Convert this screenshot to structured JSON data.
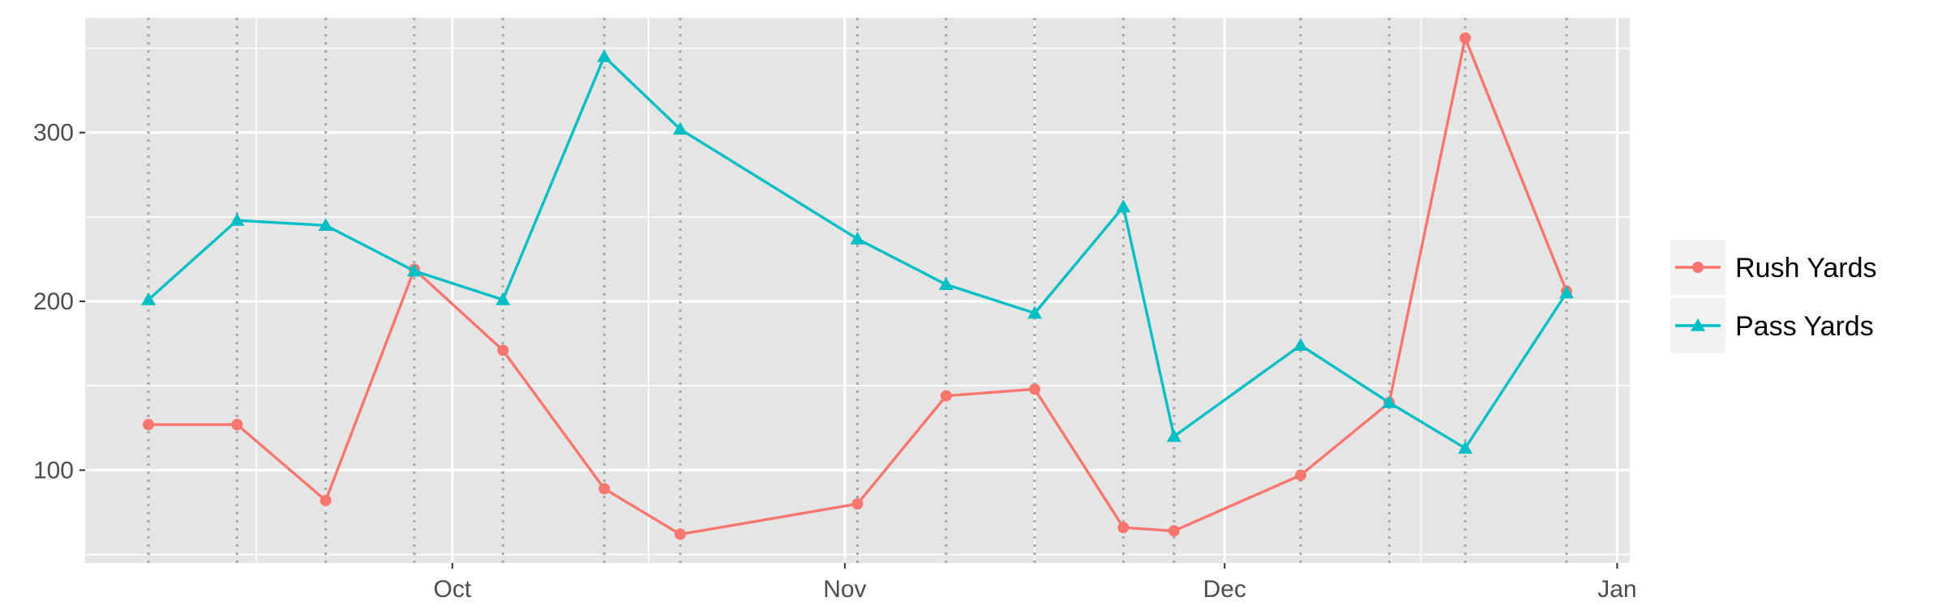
{
  "chart_data": {
    "type": "line",
    "title": "",
    "xlabel": "",
    "ylabel": "",
    "x_axis_type": "date",
    "xlim": [
      "2024-09-02",
      "2025-01-02"
    ],
    "ylim": [
      45,
      368
    ],
    "x_ticks": [
      {
        "date": "2024-10-01",
        "label": "Oct"
      },
      {
        "date": "2024-11-01",
        "label": "Nov"
      },
      {
        "date": "2024-12-01",
        "label": "Dec"
      },
      {
        "date": "2025-01-01",
        "label": "Jan"
      }
    ],
    "y_ticks": [
      100,
      200,
      300
    ],
    "grid": true,
    "legend_position": "right",
    "game_dates": [
      "2024-09-07",
      "2024-09-14",
      "2024-09-21",
      "2024-09-28",
      "2024-10-05",
      "2024-10-13",
      "2024-10-19",
      "2024-11-02",
      "2024-11-09",
      "2024-11-16",
      "2024-11-23",
      "2024-11-27",
      "2024-12-07",
      "2024-12-14",
      "2024-12-20",
      "2024-12-28"
    ],
    "series": [
      {
        "name": "Rush Yards",
        "color": "#F8766D",
        "marker": "circle",
        "values": [
          127,
          127,
          82,
          219,
          171,
          89,
          62,
          80,
          144,
          148,
          66,
          64,
          97,
          140,
          356,
          206
        ]
      },
      {
        "name": "Pass Yards",
        "color": "#00BFC4",
        "marker": "triangle",
        "values": [
          201,
          248,
          245,
          218,
          201,
          345,
          302,
          237,
          210,
          193,
          256,
          120,
          174,
          140,
          113,
          205
        ]
      }
    ]
  },
  "colors": {
    "panel_background": "#E5E5E5",
    "grid_line": "#FFFFFF",
    "game_marker_line": "#A6A6A6",
    "legend_key_background": "#F2F2F2"
  }
}
